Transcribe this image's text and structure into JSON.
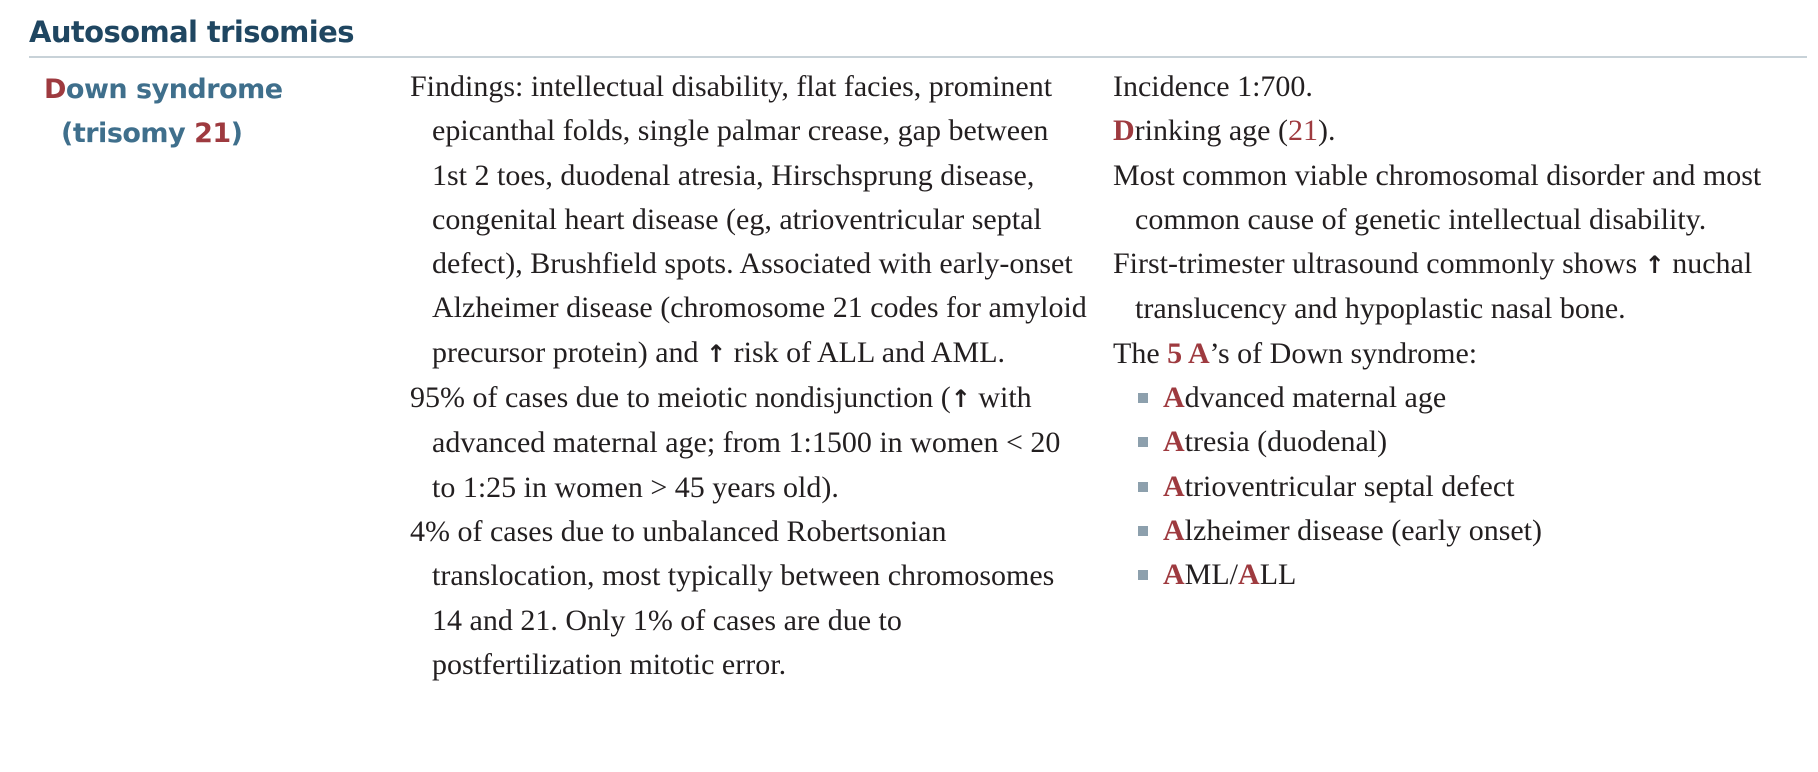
{
  "section_title": "Autosomal trisomies",
  "disease": {
    "name_first_letter": "D",
    "name_rest": "own syndrome",
    "trisomy_open": "(trisomy ",
    "trisomy_number": "21",
    "trisomy_close": ")"
  },
  "findings": [
    {
      "before": "Findings: intellectual disability, flat facies, prominent epicanthal folds, single palmar crease, gap between 1st 2 toes, duodenal atresia, Hirschsprung disease, congenital heart disease (eg, atrioventricular septal defect), Brushfield spots. Associated with early-onset Alzheimer disease (chromosome 21 codes for amyloid precursor protein) and ",
      "arrow": "↑",
      "after": " risk of ALL and AML."
    },
    {
      "before": "95% of cases due to meiotic nondisjunction (",
      "arrow": "↑",
      "after": " with advanced maternal age; from 1:1500 in women < 20 to 1:25 in women > 45 years old)."
    },
    {
      "text": "4% of cases due to unbalanced Robertsonian translocation, most typically between chromosomes 14 and 21. Only 1% of cases are due to postfertilization mitotic error."
    }
  ],
  "notes": {
    "incidence": "Incidence 1:700.",
    "drinking_first": "D",
    "drinking_rest": "rinking age (",
    "drinking_num": "21",
    "drinking_close": ").",
    "most_common": "Most common viable chromosomal disorder and most common cause of genetic intellectual disability.",
    "ultrasound_before": "First-trimester ultrasound commonly shows ",
    "ultrasound_arrow": "↑",
    "ultrasound_after": " nuchal translucency and hypoplastic nasal bone.",
    "five_a_intro_before": "The ",
    "five_a_highlight": "5 A",
    "five_a_intro_after": "’s of Down syndrome:",
    "five_a_items": [
      {
        "parts": [
          {
            "t": "A",
            "red": true
          },
          {
            "t": "dvanced maternal age",
            "red": false
          }
        ]
      },
      {
        "parts": [
          {
            "t": "A",
            "red": true
          },
          {
            "t": "tresia (duodenal)",
            "red": false
          }
        ]
      },
      {
        "parts": [
          {
            "t": "A",
            "red": true
          },
          {
            "t": "trioventricular septal defect",
            "red": false
          }
        ]
      },
      {
        "parts": [
          {
            "t": "A",
            "red": true
          },
          {
            "t": "lzheimer disease (early onset)",
            "red": false
          }
        ]
      },
      {
        "parts": [
          {
            "t": "A",
            "red": true
          },
          {
            "t": "ML/",
            "red": false
          },
          {
            "t": "A",
            "red": true
          },
          {
            "t": "LL",
            "red": false
          }
        ]
      }
    ]
  },
  "colors": {
    "heading": "#1f4661",
    "disease_name": "#3f6f8c",
    "accent_red": "#9e3a3f",
    "body_text": "#231f20",
    "bullet": "#8da0ad",
    "rule": "#c8d2d8"
  }
}
